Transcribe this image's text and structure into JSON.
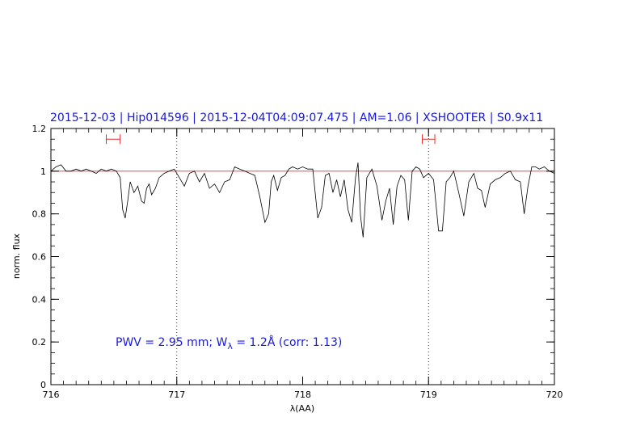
{
  "title": "2015-12-03 | Hip014596 | 2015-12-04T04:09:07.475 | AM=1.06 | XSHOOTER | S0.9x11",
  "annotation": {
    "pwv": "PWV = 2.95 mm; W",
    "sub": "λ",
    "rest": " = 1.2Å (corr: 1.13)"
  },
  "colors": {
    "title": "#1a1ad6",
    "spectrum": "#000000",
    "continuum": "#e03030",
    "window_marker": "#e03030",
    "annotation": "#1a1ad6"
  },
  "chart_data": {
    "type": "line",
    "xlabel": "λ(AA)",
    "ylabel": "norm. flux",
    "xlim": [
      716,
      720
    ],
    "ylim": [
      0,
      1.2
    ],
    "x_ticks": [
      716,
      717,
      718,
      719,
      720
    ],
    "x_tick_labels": [
      "716",
      "717",
      "718",
      "719",
      "720"
    ],
    "y_ticks": [
      0,
      0.2,
      0.4,
      0.6,
      0.8,
      1,
      1.2
    ],
    "y_tick_labels": [
      "0",
      "0.2",
      "0.4",
      "0.6",
      "0.8",
      "1",
      "1.2"
    ],
    "vertical_dotted_lines": [
      717,
      719
    ],
    "continuum_level": 1.0,
    "continuum_windows": [
      {
        "x0": 716.44,
        "x1": 716.55,
        "y": 1.15
      },
      {
        "x0": 718.95,
        "x1": 719.05,
        "y": 1.15
      }
    ],
    "series": [
      {
        "x": [
          716.0,
          716.04,
          716.08,
          716.12,
          716.16,
          716.2,
          716.24,
          716.28,
          716.32,
          716.36,
          716.4,
          716.44,
          716.48,
          716.52,
          716.55,
          716.57,
          716.59,
          716.61,
          716.63,
          716.66,
          716.69,
          716.72,
          716.74,
          716.76,
          716.78,
          716.8,
          716.83,
          716.86,
          716.9,
          716.94,
          716.98,
          717.02,
          717.06,
          717.1,
          717.14,
          717.18,
          717.22,
          717.26,
          717.3,
          717.34,
          717.38,
          717.42,
          717.46,
          717.5,
          717.54,
          717.58,
          717.62,
          717.66,
          717.7,
          717.73,
          717.75,
          717.77,
          717.8,
          717.83,
          717.86,
          717.89,
          717.92,
          717.96,
          718.0,
          718.04,
          718.08,
          718.12,
          718.15,
          718.18,
          718.21,
          718.24,
          718.27,
          718.3,
          718.33,
          718.36,
          718.39,
          718.42,
          718.44,
          718.46,
          718.48,
          718.51,
          718.55,
          718.59,
          718.63,
          718.66,
          718.69,
          718.72,
          718.75,
          718.78,
          718.81,
          718.84,
          718.87,
          718.9,
          718.93,
          718.96,
          719.0,
          719.04,
          719.08,
          719.11,
          719.14,
          719.17,
          719.2,
          719.24,
          719.28,
          719.32,
          719.36,
          719.39,
          719.42,
          719.45,
          719.49,
          719.53,
          719.57,
          719.61,
          719.65,
          719.69,
          719.73,
          719.76,
          719.79,
          719.82,
          719.85,
          719.88,
          719.92,
          719.96,
          720.0
        ],
        "y": [
          1.0,
          1.02,
          1.03,
          1.0,
          1.0,
          1.01,
          1.0,
          1.01,
          1.0,
          0.99,
          1.01,
          1.0,
          1.01,
          1.0,
          0.97,
          0.82,
          0.78,
          0.86,
          0.95,
          0.9,
          0.93,
          0.86,
          0.85,
          0.92,
          0.94,
          0.89,
          0.92,
          0.97,
          0.99,
          1.0,
          1.01,
          0.97,
          0.93,
          0.99,
          1.0,
          0.95,
          0.99,
          0.92,
          0.94,
          0.9,
          0.95,
          0.96,
          1.02,
          1.01,
          1.0,
          0.99,
          0.98,
          0.88,
          0.76,
          0.8,
          0.95,
          0.98,
          0.91,
          0.97,
          0.98,
          1.01,
          1.02,
          1.01,
          1.02,
          1.01,
          1.01,
          0.78,
          0.83,
          0.98,
          0.99,
          0.9,
          0.96,
          0.88,
          0.96,
          0.82,
          0.76,
          0.97,
          1.04,
          0.79,
          0.69,
          0.97,
          1.01,
          0.93,
          0.77,
          0.86,
          0.92,
          0.75,
          0.93,
          0.98,
          0.96,
          0.77,
          1.0,
          1.02,
          1.01,
          0.97,
          0.99,
          0.96,
          0.72,
          0.72,
          0.95,
          0.97,
          1.0,
          0.9,
          0.79,
          0.95,
          0.99,
          0.92,
          0.91,
          0.83,
          0.94,
          0.96,
          0.97,
          0.99,
          1.0,
          0.96,
          0.95,
          0.8,
          0.93,
          1.02,
          1.02,
          1.01,
          1.02,
          1.0,
          0.99
        ]
      }
    ]
  }
}
